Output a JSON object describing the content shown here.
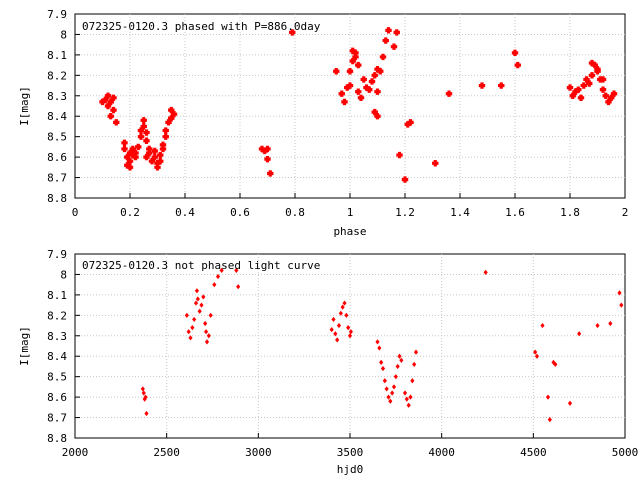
{
  "chart_data": [
    {
      "type": "scatter",
      "title": "072325-0120.3 phased with P=886.0day",
      "xlabel": "phase",
      "ylabel": "I[mag]",
      "xlim": [
        0,
        2
      ],
      "ylim": [
        8.8,
        7.9
      ],
      "y_inverted": true,
      "grid": true,
      "marker_color": "#ff0000",
      "xticks": [
        {
          "value": 0,
          "label": "0"
        },
        {
          "value": 0.2,
          "label": "0.2"
        },
        {
          "value": 0.4,
          "label": "0.4"
        },
        {
          "value": 0.6,
          "label": "0.6"
        },
        {
          "value": 0.8,
          "label": "0.8"
        },
        {
          "value": 1,
          "label": "1"
        },
        {
          "value": 1.2,
          "label": "1.2"
        },
        {
          "value": 1.4,
          "label": "1.4"
        },
        {
          "value": 1.6,
          "label": "1.6"
        },
        {
          "value": 1.8,
          "label": "1.8"
        },
        {
          "value": 2,
          "label": "2"
        }
      ],
      "yticks": [
        {
          "value": 7.9,
          "label": "7.9"
        },
        {
          "value": 8.0,
          "label": "8"
        },
        {
          "value": 8.1,
          "label": "8.1"
        },
        {
          "value": 8.2,
          "label": "8.2"
        },
        {
          "value": 8.3,
          "label": "8.3"
        },
        {
          "value": 8.4,
          "label": "8.4"
        },
        {
          "value": 8.5,
          "label": "8.5"
        },
        {
          "value": 8.6,
          "label": "8.6"
        },
        {
          "value": 8.7,
          "label": "8.7"
        },
        {
          "value": 8.8,
          "label": "8.8"
        }
      ],
      "x": [
        0.1,
        0.11,
        0.12,
        0.12,
        0.13,
        0.14,
        0.13,
        0.14,
        0.15,
        0.18,
        0.18,
        0.19,
        0.19,
        0.2,
        0.2,
        0.21,
        0.21,
        0.22,
        0.22,
        0.23,
        0.2,
        0.24,
        0.24,
        0.25,
        0.25,
        0.26,
        0.26,
        0.27,
        0.26,
        0.27,
        0.28,
        0.29,
        0.29,
        0.3,
        0.3,
        0.31,
        0.31,
        0.32,
        0.32,
        0.33,
        0.33,
        0.34,
        0.35,
        0.35,
        0.36,
        0.68,
        0.69,
        0.7,
        0.7,
        0.71,
        0.79,
        0.95,
        0.97,
        0.98,
        0.99,
        1.0,
        1.0,
        1.01,
        1.01,
        1.02,
        1.02,
        1.03,
        1.03,
        1.04,
        1.05,
        1.06,
        1.07,
        1.08,
        1.09,
        1.1,
        1.1,
        1.11,
        1.12,
        1.13,
        1.14,
        1.09,
        1.1,
        1.16,
        1.17,
        1.18,
        1.2,
        1.21,
        1.22,
        1.31,
        1.36,
        1.48,
        1.55,
        1.6,
        1.61,
        1.8,
        1.81,
        1.82,
        1.83,
        1.84,
        1.85,
        1.86,
        1.87,
        1.88,
        1.89,
        1.9,
        1.91,
        1.92,
        1.93,
        1.94,
        1.95,
        1.96,
        1.88,
        1.9,
        1.92
      ],
      "y": [
        8.33,
        8.32,
        8.35,
        8.3,
        8.33,
        8.37,
        8.4,
        8.31,
        8.43,
        8.53,
        8.56,
        8.6,
        8.64,
        8.58,
        8.62,
        8.59,
        8.56,
        8.6,
        8.58,
        8.55,
        8.65,
        8.5,
        8.47,
        8.45,
        8.42,
        8.48,
        8.52,
        8.56,
        8.6,
        8.58,
        8.62,
        8.57,
        8.6,
        8.63,
        8.65,
        8.62,
        8.59,
        8.56,
        8.54,
        8.5,
        8.47,
        8.43,
        8.41,
        8.37,
        8.39,
        8.56,
        8.57,
        8.61,
        8.56,
        8.68,
        7.99,
        8.18,
        8.29,
        8.33,
        8.26,
        8.25,
        8.18,
        8.08,
        8.13,
        8.11,
        8.09,
        8.15,
        8.28,
        8.31,
        8.22,
        8.26,
        8.27,
        8.23,
        8.2,
        8.17,
        8.28,
        8.18,
        8.11,
        8.03,
        7.98,
        8.38,
        8.4,
        8.06,
        7.99,
        8.59,
        8.71,
        8.44,
        8.43,
        8.63,
        8.29,
        8.25,
        8.25,
        8.09,
        8.15,
        8.26,
        8.3,
        8.28,
        8.27,
        8.31,
        8.25,
        8.22,
        8.24,
        8.2,
        8.15,
        8.18,
        8.22,
        8.27,
        8.3,
        8.33,
        8.31,
        8.29,
        8.14,
        8.17,
        8.22
      ]
    },
    {
      "type": "scatter",
      "title": "072325-0120.3 not phased light curve",
      "xlabel": "hjd0",
      "ylabel": "I[mag]",
      "xlim": [
        2000,
        5000
      ],
      "ylim": [
        8.8,
        7.9
      ],
      "y_inverted": true,
      "grid": true,
      "marker_color": "#ff0000",
      "xticks": [
        {
          "value": 2000,
          "label": "2000"
        },
        {
          "value": 2500,
          "label": "2500"
        },
        {
          "value": 3000,
          "label": "3000"
        },
        {
          "value": 3500,
          "label": "3500"
        },
        {
          "value": 4000,
          "label": "4000"
        },
        {
          "value": 4500,
          "label": "4500"
        },
        {
          "value": 5000,
          "label": "5000"
        }
      ],
      "yticks": [
        {
          "value": 7.9,
          "label": "7.9"
        },
        {
          "value": 8.0,
          "label": "8"
        },
        {
          "value": 8.1,
          "label": "8.1"
        },
        {
          "value": 8.2,
          "label": "8.2"
        },
        {
          "value": 8.3,
          "label": "8.3"
        },
        {
          "value": 8.4,
          "label": "8.4"
        },
        {
          "value": 8.5,
          "label": "8.5"
        },
        {
          "value": 8.6,
          "label": "8.6"
        },
        {
          "value": 8.7,
          "label": "8.7"
        },
        {
          "value": 8.8,
          "label": "8.8"
        }
      ],
      "x": [
        2370,
        2375,
        2380,
        2385,
        2390,
        2610,
        2620,
        2630,
        2640,
        2650,
        2660,
        2665,
        2670,
        2680,
        2690,
        2700,
        2710,
        2715,
        2720,
        2730,
        2740,
        2760,
        2780,
        2800,
        2880,
        2890,
        3400,
        3410,
        3420,
        3430,
        3440,
        3450,
        3460,
        3470,
        3480,
        3490,
        3500,
        3505,
        3650,
        3660,
        3670,
        3680,
        3690,
        3700,
        3710,
        3720,
        3730,
        3740,
        3750,
        3760,
        3770,
        3780,
        3800,
        3810,
        3820,
        3830,
        3840,
        3850,
        3860,
        4240,
        4510,
        4520,
        4550,
        4580,
        4590,
        4610,
        4620,
        4700,
        4750,
        4850,
        4920,
        4970,
        4980
      ],
      "y": [
        8.56,
        8.58,
        8.61,
        8.6,
        8.68,
        8.2,
        8.28,
        8.31,
        8.26,
        8.22,
        8.14,
        8.08,
        8.12,
        8.18,
        8.15,
        8.11,
        8.24,
        8.28,
        8.33,
        8.3,
        8.2,
        8.05,
        8.01,
        7.98,
        7.98,
        8.06,
        8.27,
        8.22,
        8.29,
        8.32,
        8.25,
        8.19,
        8.16,
        8.14,
        8.2,
        8.26,
        8.3,
        8.28,
        8.33,
        8.36,
        8.43,
        8.46,
        8.52,
        8.56,
        8.6,
        8.62,
        8.58,
        8.55,
        8.5,
        8.45,
        8.4,
        8.42,
        8.58,
        8.61,
        8.64,
        8.6,
        8.52,
        8.44,
        8.38,
        7.99,
        8.38,
        8.4,
        8.25,
        8.6,
        8.71,
        8.43,
        8.44,
        8.63,
        8.29,
        8.25,
        8.24,
        8.09,
        8.15
      ]
    }
  ]
}
